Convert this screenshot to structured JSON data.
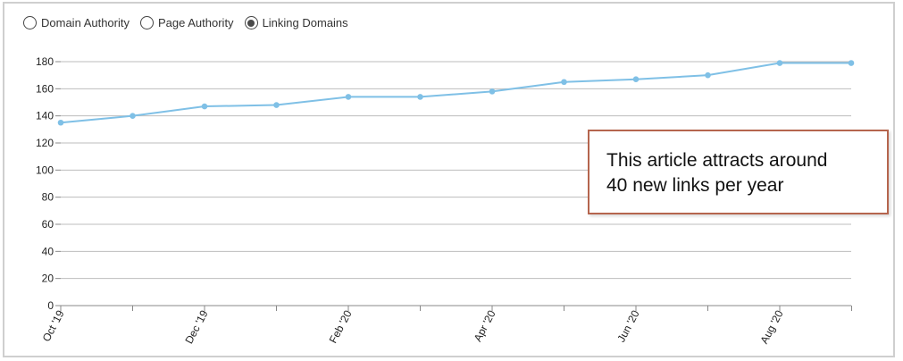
{
  "metric_selector": {
    "options": [
      {
        "label": "Domain Authority",
        "selected": false
      },
      {
        "label": "Page Authority",
        "selected": false
      },
      {
        "label": "Linking Domains",
        "selected": true
      }
    ]
  },
  "annotation": {
    "text": "This article attracts around\n40 new links per year"
  },
  "colors": {
    "line": "#7fc0e6",
    "grid": "#bdbdbd",
    "annotation_border": "#b5654e"
  },
  "chart_data": {
    "type": "line",
    "x": [
      "Oct '19",
      "Nov '19",
      "Dec '19",
      "Jan '20",
      "Feb '20",
      "Mar '20",
      "Apr '20",
      "May '20",
      "Jun '20",
      "Jul '20",
      "Aug '20",
      "Sep '20"
    ],
    "x_tick_labels": [
      "Oct '19",
      "",
      "Dec '19",
      "",
      "Feb '20",
      "",
      "Apr '20",
      "",
      "Jun '20",
      "",
      "Aug '20",
      ""
    ],
    "series": [
      {
        "values": [
          135,
          140,
          147,
          148,
          154,
          154,
          158,
          165,
          167,
          170,
          179,
          179
        ]
      }
    ],
    "ylim": [
      0,
      180
    ],
    "y_ticks": [
      0,
      20,
      40,
      60,
      80,
      100,
      120,
      140,
      160,
      180
    ],
    "grid": true,
    "title": "",
    "xlabel": "",
    "ylabel": ""
  }
}
